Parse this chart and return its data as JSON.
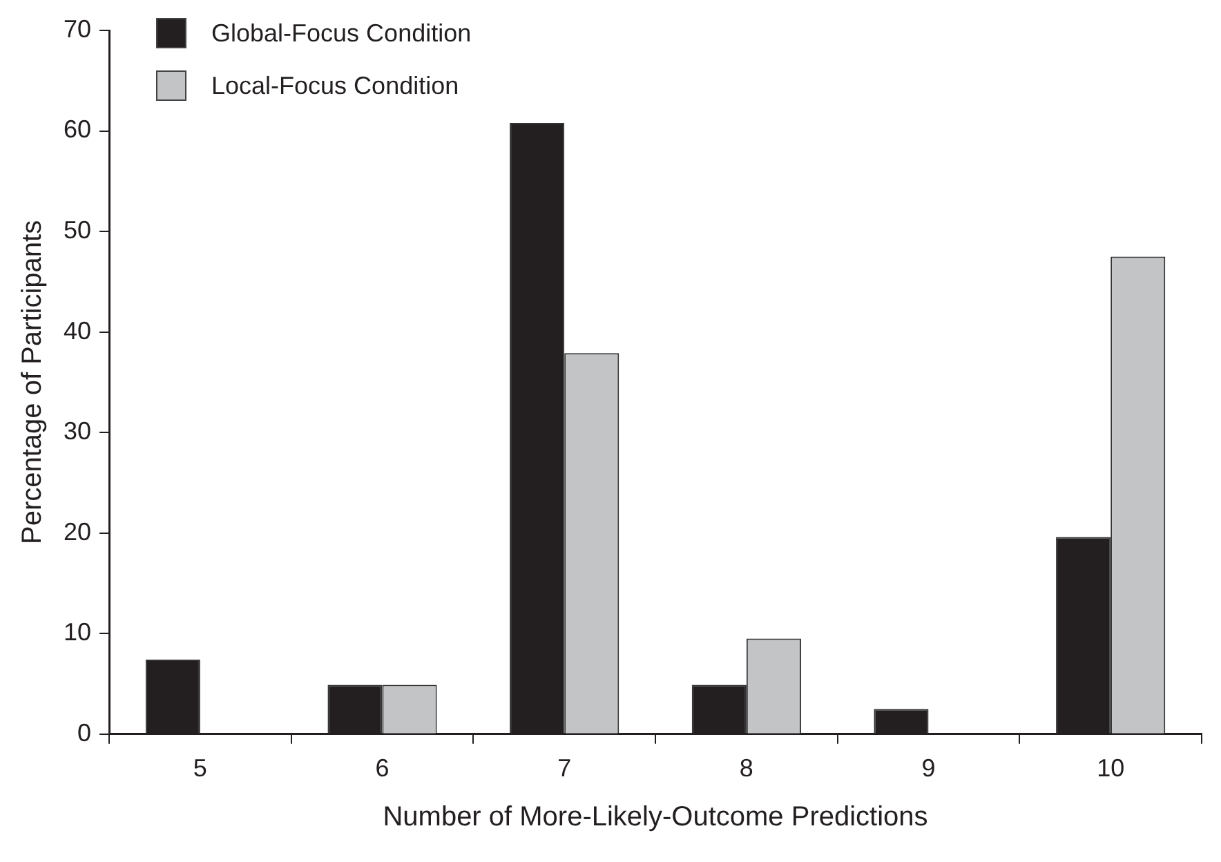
{
  "chart_data": {
    "type": "bar",
    "xlabel": "Number of More-Likely-Outcome Predictions",
    "ylabel": "Percentage of Participants",
    "categories": [
      "5",
      "6",
      "7",
      "8",
      "9",
      "10"
    ],
    "series": [
      {
        "name": "Global-Focus Condition",
        "color": "#231f20",
        "values": [
          7.4,
          4.9,
          60.8,
          4.9,
          2.5,
          19.6
        ]
      },
      {
        "name": "Local-Focus Condition",
        "color": "#c3c4c6",
        "values": [
          0,
          4.9,
          37.9,
          9.5,
          0,
          47.5
        ]
      }
    ],
    "ylim": [
      0,
      70
    ],
    "yticks": [
      0,
      10,
      20,
      30,
      40,
      50,
      60,
      70
    ],
    "legend": "top left"
  }
}
